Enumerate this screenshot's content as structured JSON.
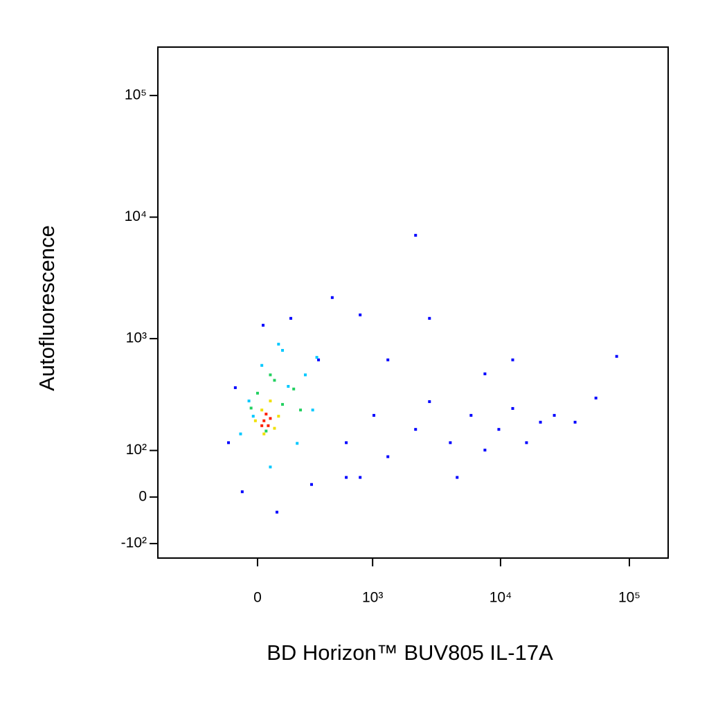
{
  "chart_data": {
    "type": "scatter",
    "x_label": "BD Horizon™ BUV805 IL-17A",
    "y_label": "Autofluorescence",
    "xlim": [
      -750,
      200000
    ],
    "ylim": [
      -143,
      250000
    ],
    "xticks": [
      0,
      {
        "value": 1000,
        "label": "10³"
      },
      {
        "value": 10000,
        "label": "10⁴"
      },
      {
        "value": 100000,
        "label": "10⁵"
      }
    ],
    "yticks": [
      {
        "value": -100,
        "label": "-10²"
      },
      0,
      {
        "value": 100,
        "label": "10²"
      },
      {
        "value": 1000,
        "label": "10³"
      },
      {
        "value": 10000,
        "label": "10⁴"
      },
      {
        "value": 100000,
        "label": "10⁵"
      }
    ],
    "series": [
      {
        "color": "#0000ff",
        "x": [
          608,
          1024,
          1323,
          2184,
          2803,
          4072,
          5902,
          7566,
          9698,
          12430,
          15910,
          20410,
          26150,
          37900,
          55000,
          79700,
          2184,
          2803,
          793,
          460,
          608,
          343,
          292,
          92,
          -72,
          -141,
          -106,
          26,
          164,
          1323,
          7566,
          12430,
          4602,
          793
        ],
        "y": [
          122,
          224,
          84,
          166,
          296,
          122,
          224,
          101,
          166,
          258,
          122,
          194,
          224,
          194,
          318,
          713,
          7090,
          1470,
          1570,
          2180,
          38,
          667,
          24,
          -29,
          10,
          122,
          390,
          1290,
          1470,
          667,
          510,
          667,
          38,
          38
        ]
      },
      {
        "color": "#00c8ff",
        "x": [
          -40,
          20,
          120,
          250,
          300,
          200,
          -80,
          60,
          -20,
          150,
          330,
          100
        ],
        "y": [
          300,
          600,
          800,
          500,
          250,
          120,
          150,
          60,
          220,
          400,
          700,
          900
        ]
      },
      {
        "color": "#22d060",
        "x": [
          0,
          80,
          180,
          220,
          40,
          -30,
          120,
          60
        ],
        "y": [
          350,
          450,
          380,
          250,
          160,
          260,
          280,
          500
        ]
      },
      {
        "color": "#f0e000",
        "x": [
          20,
          60,
          100,
          30,
          -10,
          80
        ],
        "y": [
          250,
          300,
          220,
          150,
          200,
          170
        ]
      },
      {
        "color": "#ff2000",
        "x": [
          30,
          50,
          40,
          20,
          60
        ],
        "y": [
          200,
          180,
          230,
          180,
          210
        ]
      }
    ]
  }
}
